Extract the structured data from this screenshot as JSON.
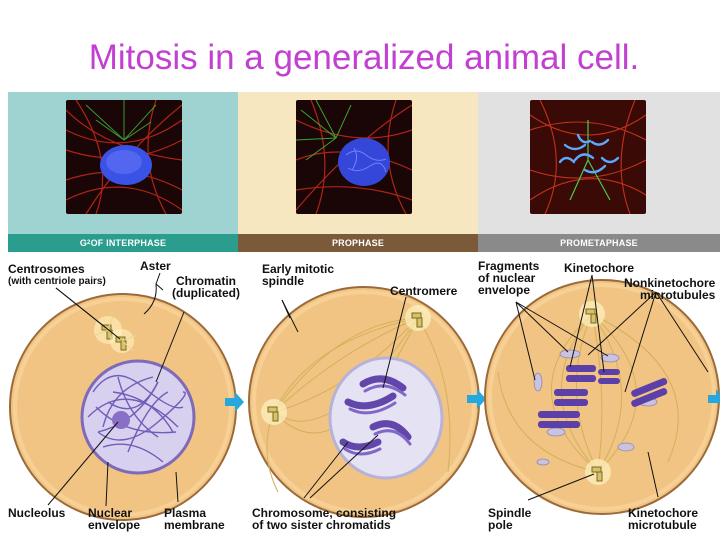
{
  "title": "Mitosis in a generalized animal cell.",
  "colors": {
    "title": "#c23fd2",
    "panel_interphase": "#9fd3d2",
    "panel_prophase": "#f6e7c1",
    "panel_prometaphase": "#e1e1e1",
    "bar_interphase": "#2a9d8f",
    "bar_prophase": "#7b5a3a",
    "bar_prometaphase": "#8a8a8a",
    "cell_fill": "#f2c483",
    "cell_edge": "#9b6a3a",
    "chromosome": "#6a4fb3",
    "arrow": "#26a7de"
  },
  "phases": [
    {
      "main": "G",
      "sub": "2",
      "rest": " OF INTERPHASE"
    },
    {
      "main": "PROPHASE",
      "sub": "",
      "rest": ""
    },
    {
      "main": "PROMETAPHASE",
      "sub": "",
      "rest": ""
    }
  ],
  "labels": {
    "centrosomes_1": "Centrosomes",
    "centrosomes_2": "(with centriole pairs)",
    "aster": "Aster",
    "chromatin_1": "Chromatin",
    "chromatin_2": "(duplicated)",
    "early_spindle_1": "Early mitotic",
    "early_spindle_2": "spindle",
    "centromere": "Centromere",
    "fragments_1": "Fragments",
    "fragments_2": "of nuclear",
    "fragments_3": "envelope",
    "kinetochore": "Kinetochore",
    "nonkin_1": "Nonkinetochore",
    "nonkin_2": "microtubules",
    "nucleolus": "Nucleolus",
    "nuclear_env_1": "Nuclear",
    "nuclear_env_2": "envelope",
    "plasma_1": "Plasma",
    "plasma_2": "membrane",
    "chromosome_1": "Chromosome, consisting",
    "chromosome_2": "of two sister chromatids",
    "spindle_pole_1": "Spindle",
    "spindle_pole_2": "pole",
    "kin_micro_1": "Kinetochore",
    "kin_micro_2": "microtubule"
  }
}
